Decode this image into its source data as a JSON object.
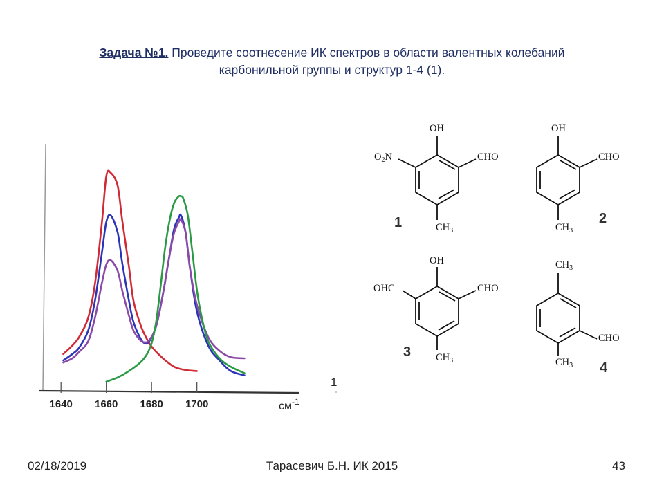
{
  "slide": {
    "title_label": "Задача №1.",
    "title_text": " Проведите соотнесение ИК спектров в области валентных колебаний",
    "title_line2": "карбонильной группы и структур 1-4 (1)."
  },
  "chart_data": {
    "type": "line",
    "xlabel": "см",
    "xlabel_sup": "-1",
    "xlim": [
      1632,
      1745
    ],
    "x_ticks": [
      1640,
      1660,
      1680,
      1700
    ],
    "tick_labels": [
      "1640",
      "1660",
      "1680",
      "1700"
    ],
    "marker_label": "1",
    "series": [
      {
        "color": "#d02a35",
        "x": [
          1641,
          1645,
          1648,
          1652,
          1655,
          1658,
          1660,
          1662,
          1665,
          1667,
          1670,
          1672,
          1675,
          1677,
          1680,
          1685,
          1690,
          1695,
          1700
        ],
        "y": [
          0.15,
          0.19,
          0.23,
          0.32,
          0.48,
          0.76,
          0.985,
          1.0,
          0.94,
          0.78,
          0.56,
          0.4,
          0.29,
          0.24,
          0.185,
          0.13,
          0.09,
          0.075,
          0.07
        ]
      },
      {
        "color": "#2c34b8",
        "x": [
          1641,
          1645,
          1648,
          1652,
          1655,
          1658,
          1660,
          1662,
          1665,
          1667,
          1670,
          1672,
          1675,
          1677,
          1679,
          1682,
          1685,
          1688,
          1690,
          1692,
          1693,
          1695,
          1697,
          1700,
          1705,
          1710,
          1715,
          1721
        ],
        "y": [
          0.12,
          0.15,
          0.18,
          0.26,
          0.4,
          0.62,
          0.77,
          0.8,
          0.72,
          0.58,
          0.4,
          0.3,
          0.225,
          0.2,
          0.21,
          0.28,
          0.43,
          0.62,
          0.74,
          0.79,
          0.8,
          0.72,
          0.55,
          0.35,
          0.19,
          0.12,
          0.07,
          0.05
        ]
      },
      {
        "color": "#8b4aa8",
        "x": [
          1641,
          1645,
          1648,
          1652,
          1655,
          1658,
          1660,
          1662,
          1665,
          1667,
          1670,
          1672,
          1675,
          1677,
          1679,
          1682,
          1685,
          1688,
          1690,
          1692,
          1693,
          1695,
          1697,
          1700,
          1705,
          1710,
          1715,
          1721
        ],
        "y": [
          0.11,
          0.13,
          0.16,
          0.21,
          0.32,
          0.48,
          0.57,
          0.59,
          0.54,
          0.45,
          0.33,
          0.26,
          0.215,
          0.205,
          0.215,
          0.28,
          0.43,
          0.62,
          0.72,
          0.77,
          0.78,
          0.72,
          0.55,
          0.38,
          0.23,
          0.165,
          0.135,
          0.13
        ]
      },
      {
        "color": "#2a9a45",
        "x": [
          1660,
          1665,
          1670,
          1675,
          1678,
          1680,
          1682,
          1684,
          1686,
          1688,
          1690,
          1692,
          1693,
          1694,
          1696,
          1698,
          1700,
          1702,
          1705,
          1710,
          1715,
          1721
        ],
        "y": [
          0.02,
          0.04,
          0.07,
          0.11,
          0.15,
          0.2,
          0.3,
          0.47,
          0.65,
          0.78,
          0.86,
          0.89,
          0.89,
          0.88,
          0.8,
          0.63,
          0.45,
          0.33,
          0.21,
          0.13,
          0.09,
          0.06
        ]
      }
    ]
  },
  "structures": {
    "s1": {
      "number": "1",
      "top": "OH",
      "left": "O",
      "left_sub": "2",
      "left_tail": "N",
      "right": "CHO",
      "bottom": "CH",
      "bottom_sub": "3"
    },
    "s2": {
      "number": "2",
      "top": "OH",
      "right": "CHO",
      "bottom": "CH",
      "bottom_sub": "3"
    },
    "s3": {
      "number": "3",
      "top": "OH",
      "left": "OHC",
      "right": "CHO",
      "bottom": "CH",
      "bottom_sub": "3"
    },
    "s4": {
      "number": "4",
      "top": "CH",
      "top_sub": "3",
      "right": "CHO",
      "bottom": "CH",
      "bottom_sub": "3"
    }
  },
  "footer": {
    "date": "02/18/2019",
    "author": "Тарасевич Б.Н.  ИК 2015",
    "page": "43"
  }
}
